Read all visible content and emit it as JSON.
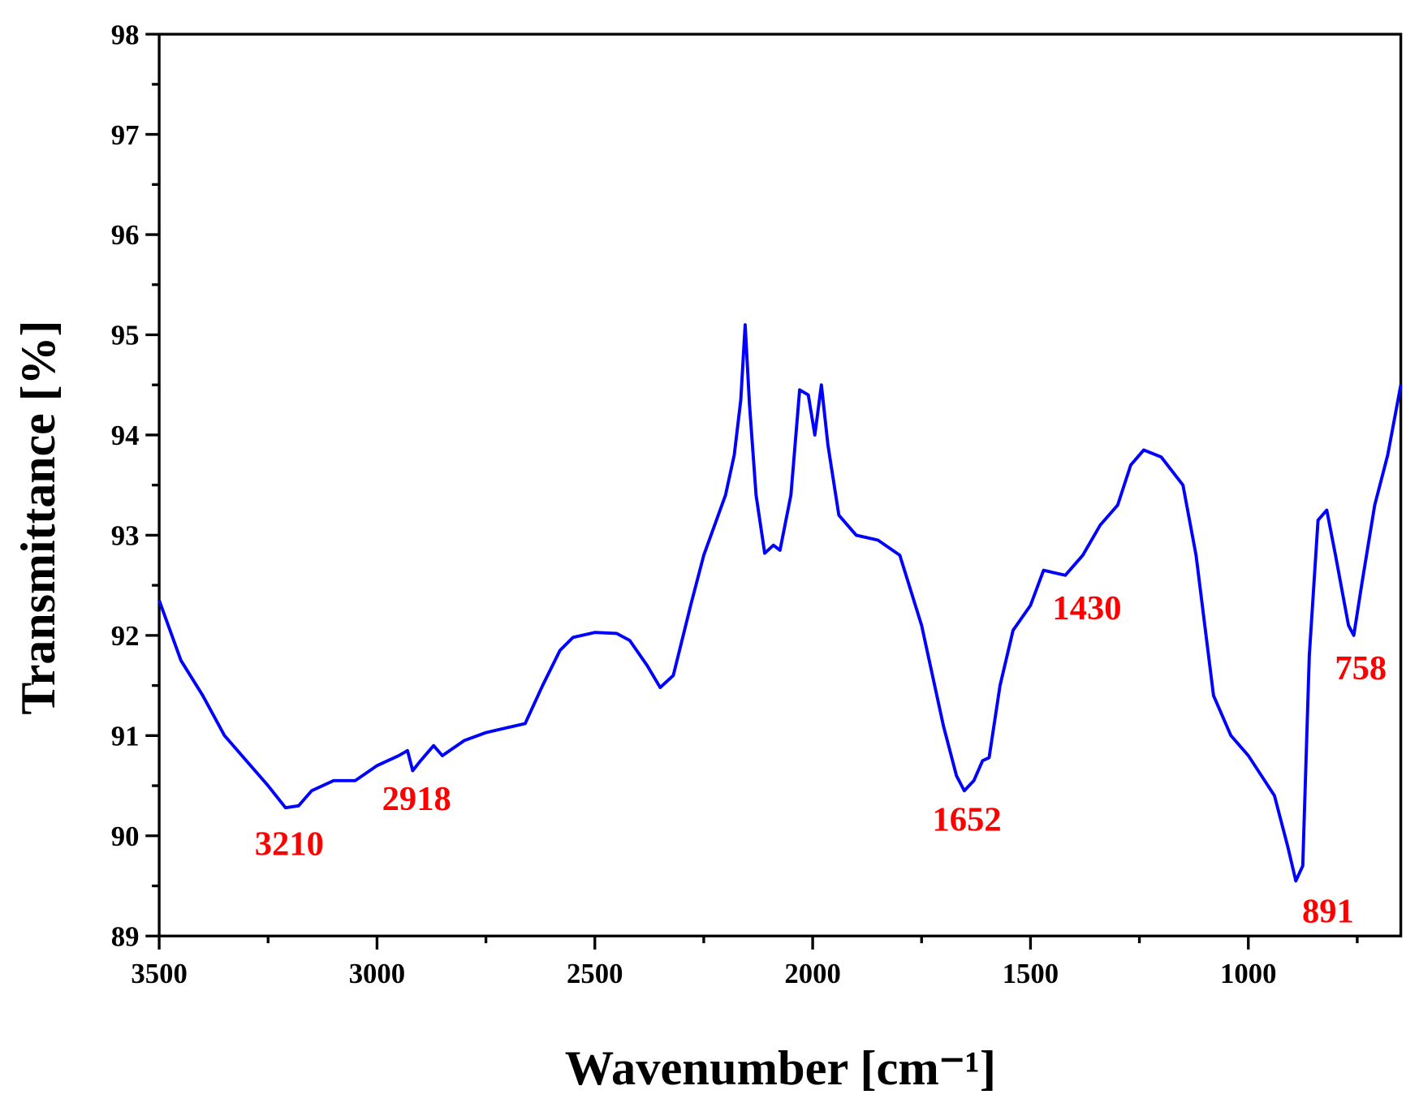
{
  "chart_data": {
    "type": "line",
    "xlabel": "Wavenumber [cm⁻¹]",
    "ylabel": "Transmittance [%]",
    "xlim": [
      3500,
      650
    ],
    "ylim": [
      89,
      98
    ],
    "xticks": [
      3500,
      3000,
      2500,
      2000,
      1500,
      1000
    ],
    "yticks": [
      89,
      90,
      91,
      92,
      93,
      94,
      95,
      96,
      97,
      98
    ],
    "x": [
      3500,
      3450,
      3400,
      3350,
      3300,
      3250,
      3210,
      3180,
      3150,
      3100,
      3050,
      3000,
      2950,
      2930,
      2918,
      2900,
      2870,
      2850,
      2800,
      2750,
      2700,
      2660,
      2620,
      2580,
      2550,
      2500,
      2450,
      2420,
      2380,
      2350,
      2320,
      2280,
      2250,
      2200,
      2180,
      2165,
      2155,
      2145,
      2130,
      2110,
      2090,
      2075,
      2050,
      2030,
      2010,
      1995,
      1980,
      1965,
      1940,
      1900,
      1850,
      1800,
      1750,
      1700,
      1670,
      1652,
      1630,
      1610,
      1595,
      1570,
      1540,
      1500,
      1470,
      1440,
      1420,
      1380,
      1340,
      1300,
      1270,
      1240,
      1200,
      1150,
      1120,
      1080,
      1040,
      1000,
      940,
      910,
      891,
      875,
      860,
      840,
      820,
      800,
      770,
      758,
      740,
      710,
      680,
      650
    ],
    "series": [
      {
        "color": "#0000ff",
        "values": [
          92.35,
          91.75,
          91.4,
          91.0,
          90.75,
          90.5,
          90.28,
          90.3,
          90.45,
          90.55,
          90.55,
          90.7,
          90.8,
          90.85,
          90.65,
          90.75,
          90.9,
          90.8,
          90.95,
          91.03,
          91.08,
          91.12,
          91.5,
          91.85,
          91.98,
          92.03,
          92.02,
          91.95,
          91.7,
          91.48,
          91.6,
          92.3,
          92.8,
          93.4,
          93.8,
          94.35,
          95.1,
          94.3,
          93.4,
          92.82,
          92.9,
          92.85,
          93.4,
          94.45,
          94.4,
          94.0,
          94.5,
          93.9,
          93.2,
          93.0,
          92.95,
          92.8,
          92.1,
          91.1,
          90.6,
          90.45,
          90.55,
          90.75,
          90.78,
          91.5,
          92.05,
          92.3,
          92.65,
          92.62,
          92.6,
          92.8,
          93.1,
          93.3,
          93.7,
          93.85,
          93.78,
          93.5,
          92.8,
          91.4,
          91.0,
          90.8,
          90.4,
          89.9,
          89.55,
          89.7,
          91.8,
          93.15,
          93.25,
          92.8,
          92.1,
          92.0,
          92.5,
          93.3,
          93.8,
          94.5
        ]
      }
    ],
    "annotations": [
      "3210",
      "2918",
      "1652",
      "1430",
      "891",
      "758"
    ]
  }
}
